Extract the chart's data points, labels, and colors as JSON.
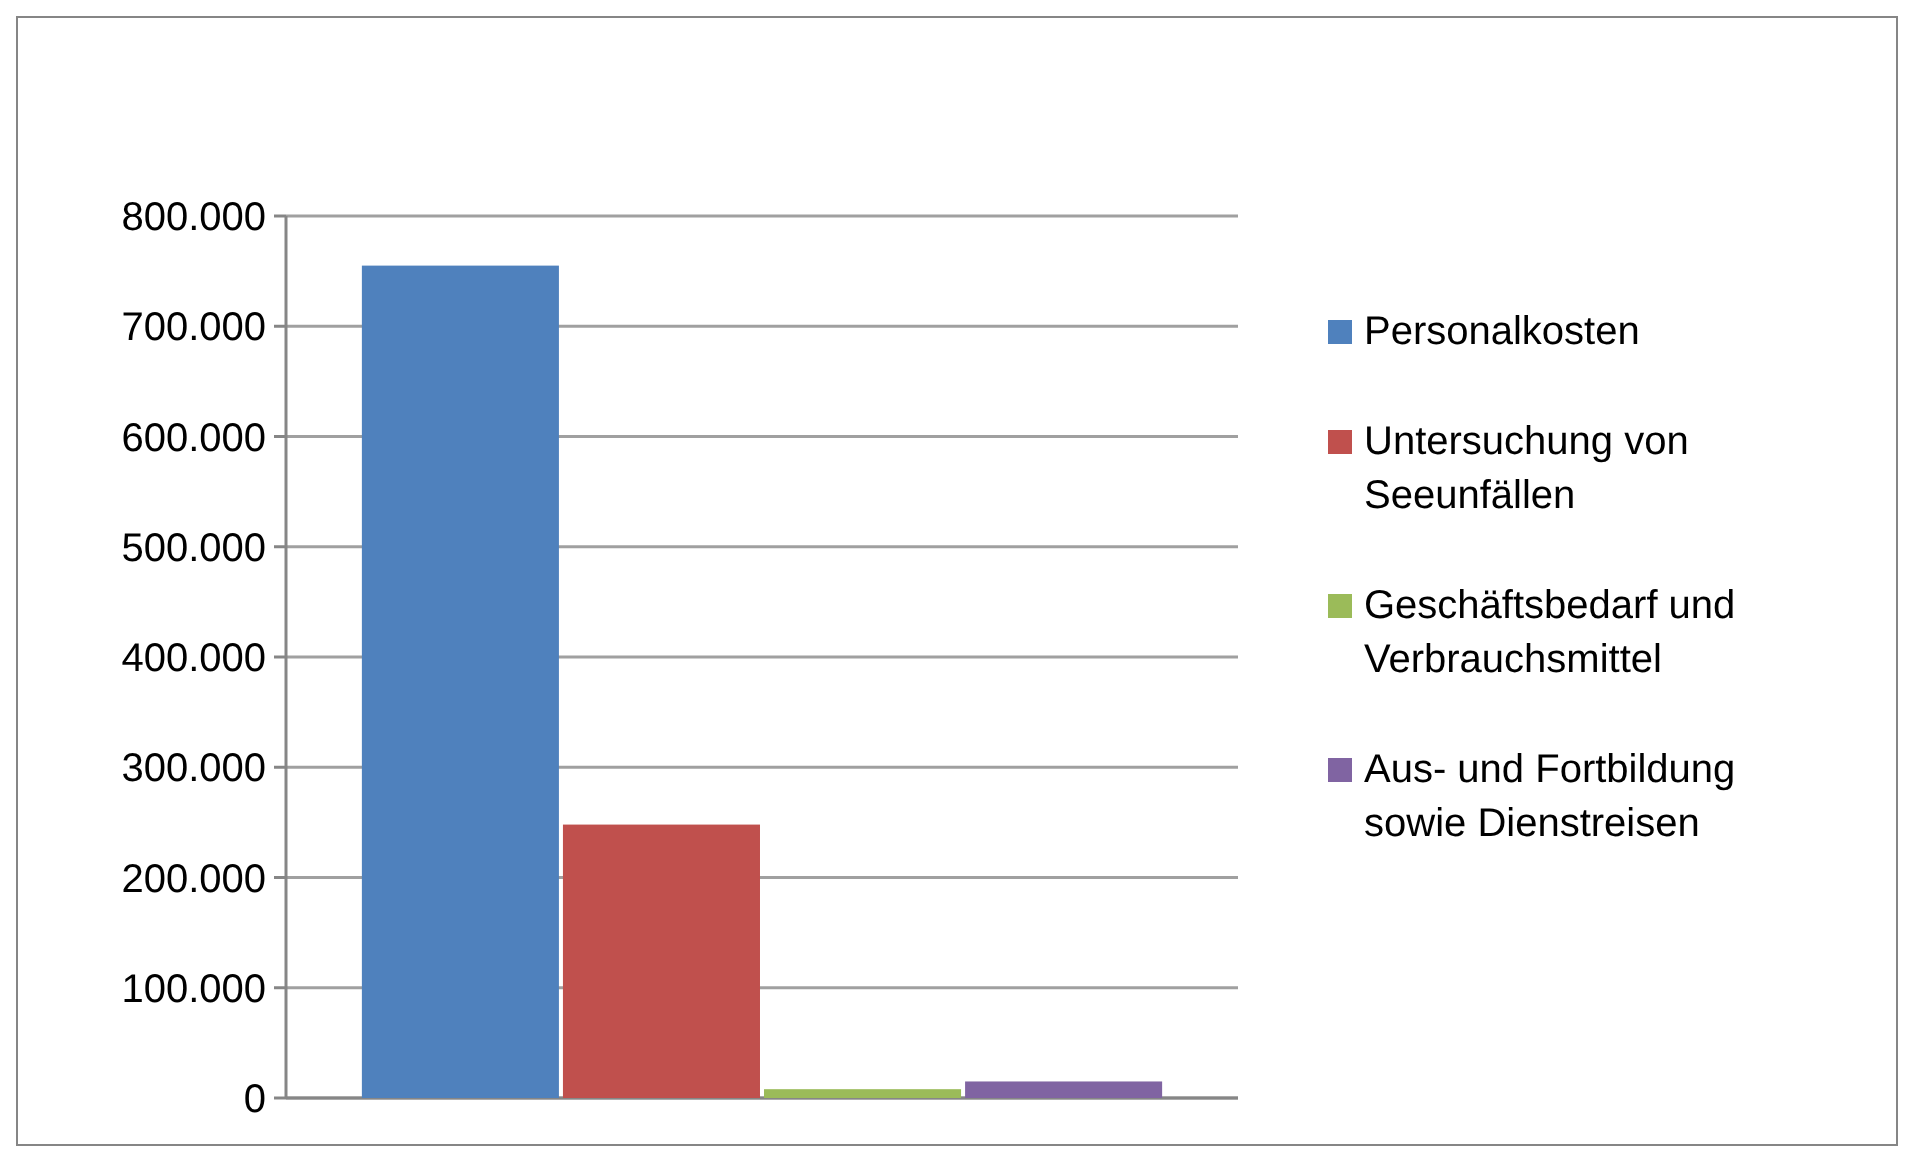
{
  "chart_data": {
    "type": "bar",
    "categories": [
      null
    ],
    "series": [
      {
        "name": "Personalkosten",
        "color": "#4f81bd",
        "values": [
          755000
        ]
      },
      {
        "name": "Untersuchung von Seeunfällen",
        "color": "#c0504d",
        "values": [
          248000
        ]
      },
      {
        "name": "Geschäftsbedarf und Verbrauchsmittel",
        "color": "#9bbb59",
        "values": [
          8000
        ]
      },
      {
        "name": "Aus- und Fortbildung sowie Dienstreisen",
        "color": "#8064a2",
        "values": [
          15000
        ]
      }
    ],
    "ylim": [
      0,
      800000
    ],
    "yticks": [
      {
        "value": 0,
        "label": "0"
      },
      {
        "value": 100000,
        "label": "100.000"
      },
      {
        "value": 200000,
        "label": "200.000"
      },
      {
        "value": 300000,
        "label": "300.000"
      },
      {
        "value": 400000,
        "label": "400.000"
      },
      {
        "value": 500000,
        "label": "500.000"
      },
      {
        "value": 600000,
        "label": "600.000"
      },
      {
        "value": 700000,
        "label": "700.000"
      },
      {
        "value": 800000,
        "label": "800.000"
      }
    ],
    "grid": "y",
    "legend": "right"
  }
}
